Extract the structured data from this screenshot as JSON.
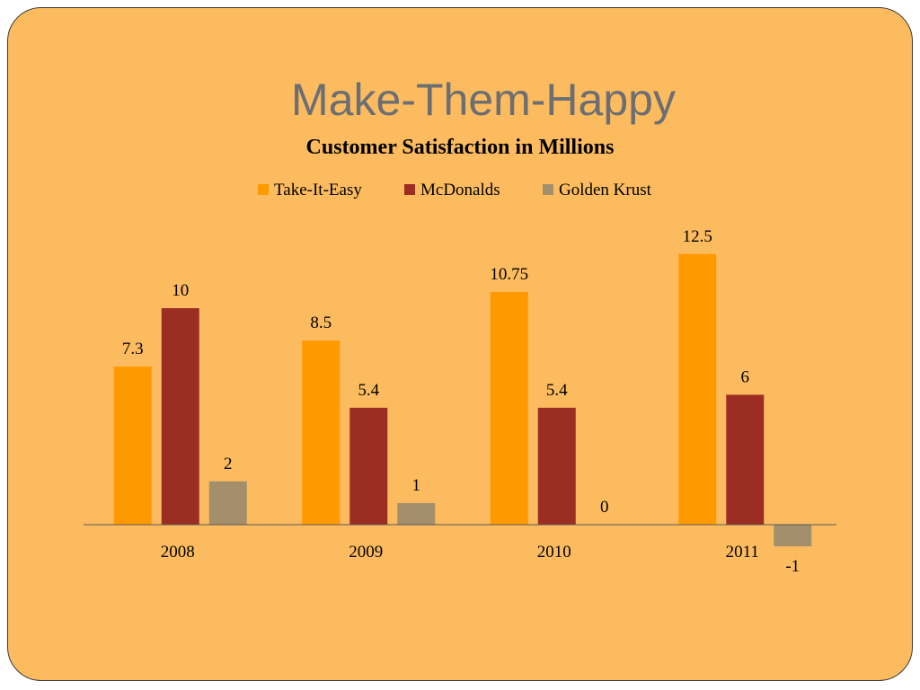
{
  "slide": {
    "title": "Make-Them-Happy",
    "background_color": "#fcbb5f",
    "title_color": "#6b6e73"
  },
  "chart_data": {
    "type": "bar",
    "title": "Customer Satisfaction in Millions",
    "xlabel": "",
    "ylabel": "",
    "categories": [
      "2008",
      "2009",
      "2010",
      "2011"
    ],
    "series": [
      {
        "name": "Take-It-Easy",
        "color": "#ff9900",
        "values": [
          7.3,
          8.5,
          10.75,
          12.5
        ],
        "labels": [
          "7.3",
          "8.5",
          "10.75",
          "12.5"
        ]
      },
      {
        "name": "McDonalds",
        "color": "#9b2d22",
        "values": [
          10,
          5.4,
          5.4,
          6
        ],
        "labels": [
          "10",
          "5.4",
          "5.4",
          "6"
        ]
      },
      {
        "name": "Golden Krust",
        "color": "#a38f6c",
        "values": [
          2,
          1,
          0,
          -1
        ],
        "labels": [
          "2",
          "1",
          "0",
          "-1"
        ]
      }
    ],
    "legend_position": "top",
    "grid": false,
    "value_axis_visible": false,
    "data_labels": true
  }
}
